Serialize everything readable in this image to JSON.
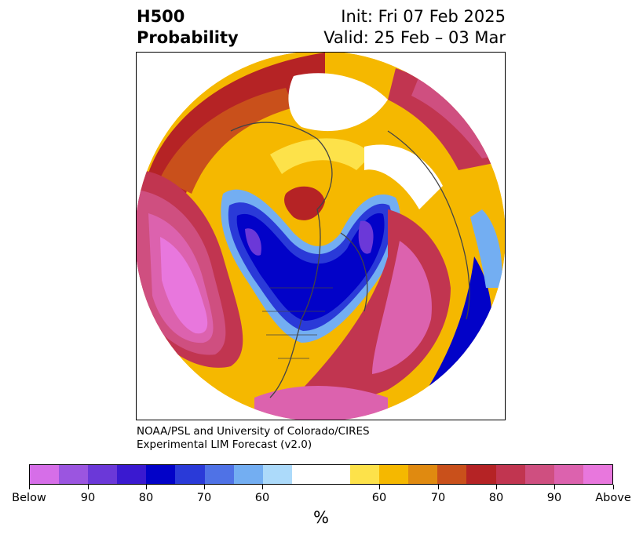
{
  "header": {
    "variable": "H500",
    "product": "Probability",
    "init": "Init: Fri 07 Feb 2025",
    "valid": "Valid: 25 Feb – 03 Mar"
  },
  "credit": {
    "line1": "NOAA/PSL and University of Colorado/CIRES",
    "line2": "Experimental LIM Forecast (v2.0)"
  },
  "colorbar": {
    "unit": "%",
    "colors": [
      "#d66ee8",
      "#9b55e0",
      "#6b38d8",
      "#3a19d0",
      "#0202c8",
      "#2a3ad8",
      "#4f72e6",
      "#73aef2",
      "#acdafa",
      "#ffffff",
      "#ffffff",
      "#fde24a",
      "#f5b800",
      "#e08a10",
      "#c9501b",
      "#b52325",
      "#c13550",
      "#cf4f80",
      "#dc62ae",
      "#e877dd"
    ],
    "tick_labels": [
      "Below",
      "90",
      "80",
      "70",
      "60",
      "60",
      "70",
      "80",
      "90",
      "Above"
    ]
  }
}
